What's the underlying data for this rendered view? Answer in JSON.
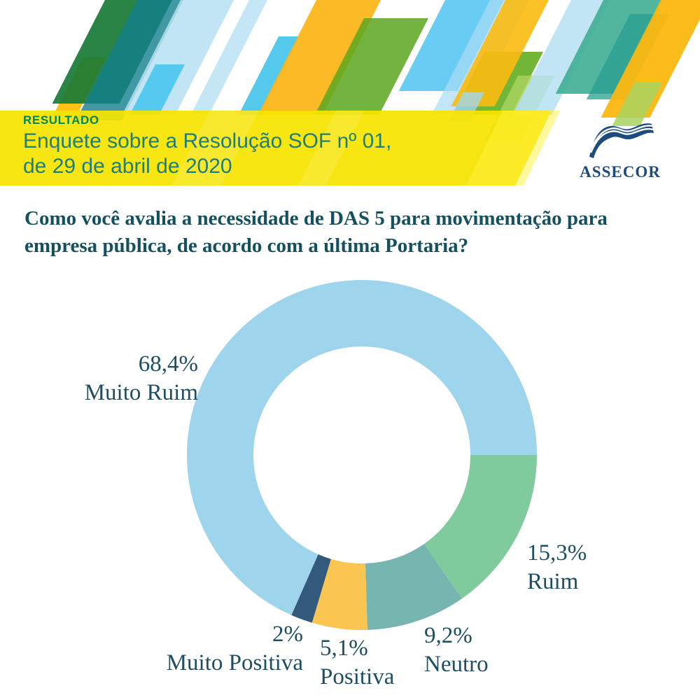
{
  "header": {
    "kicker": "RESULTADO",
    "title_lines": [
      "Enquete sobre a Resolução SOF nº 01,",
      "de 29 de abril de 2020"
    ],
    "colors": {
      "band": "#f6e400",
      "kicker": "#00855c",
      "title": "#1f7e78"
    }
  },
  "logo": {
    "name": "ASSECOR",
    "color": "#1c4b7c"
  },
  "question": {
    "text": "Como você avalia a necessidade de DAS 5 para movimentação para empresa pública, de acordo com a última Portaria?",
    "color": "#15505f"
  },
  "chart_data": {
    "type": "pie",
    "subtype": "donut",
    "title": "Como você avalia a necessidade de DAS 5 para movimentação para empresa pública, de acordo com a última Portaria?",
    "unit": "%",
    "categories": [
      "Muito Ruim",
      "Ruim",
      "Neutro",
      "Positiva",
      "Muito Positiva"
    ],
    "values": [
      68.4,
      15.3,
      9.2,
      5.1,
      2
    ],
    "value_labels": [
      "68,4%",
      "15,3%",
      "9,2%",
      "5,1%",
      "2%"
    ],
    "segments": [
      {
        "label": "Muito Ruim",
        "value": 68.4,
        "display": "68,4%",
        "color": "#9fd5ec"
      },
      {
        "label": "Ruim",
        "value": 15.3,
        "display": "15,3%",
        "color": "#7fcb9e"
      },
      {
        "label": "Neutro",
        "value": 9.2,
        "display": "9,2%",
        "color": "#77b6b0"
      },
      {
        "label": "Positiva",
        "value": 5.1,
        "display": "5,1%",
        "color": "#fbc551"
      },
      {
        "label": "Muito Positiva",
        "value": 2,
        "display": "2%",
        "color": "#33597d"
      }
    ],
    "geometry": {
      "start_angle_deg": 0,
      "direction": "clockwise",
      "draw_order": [
        1,
        2,
        3,
        4,
        0
      ],
      "inner_radius_ratio": 0.62
    },
    "label_color": "#1d4f60",
    "legend_position": "labels-around"
  }
}
